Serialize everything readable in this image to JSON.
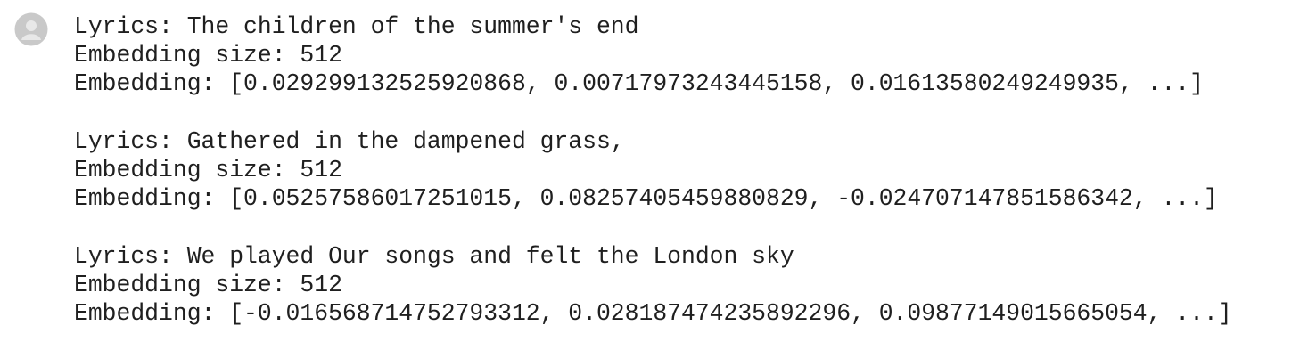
{
  "outputs": [
    {
      "lyrics": "Lyrics: The children of the summer's end",
      "size": "Embedding size: 512",
      "embedding": "Embedding: [0.029299132525920868, 0.00717973243445158, 0.01613580249249935, ...]"
    },
    {
      "lyrics": "Lyrics: Gathered in the dampened grass,",
      "size": "Embedding size: 512",
      "embedding": "Embedding: [0.05257586017251015, 0.08257405459880829, -0.024707147851586342, ...]"
    },
    {
      "lyrics": "Lyrics: We played Our songs and felt the London sky",
      "size": "Embedding size: 512",
      "embedding": "Embedding: [-0.016568714752793312, 0.028187474235892296, 0.09877149015665054, ...]"
    }
  ]
}
